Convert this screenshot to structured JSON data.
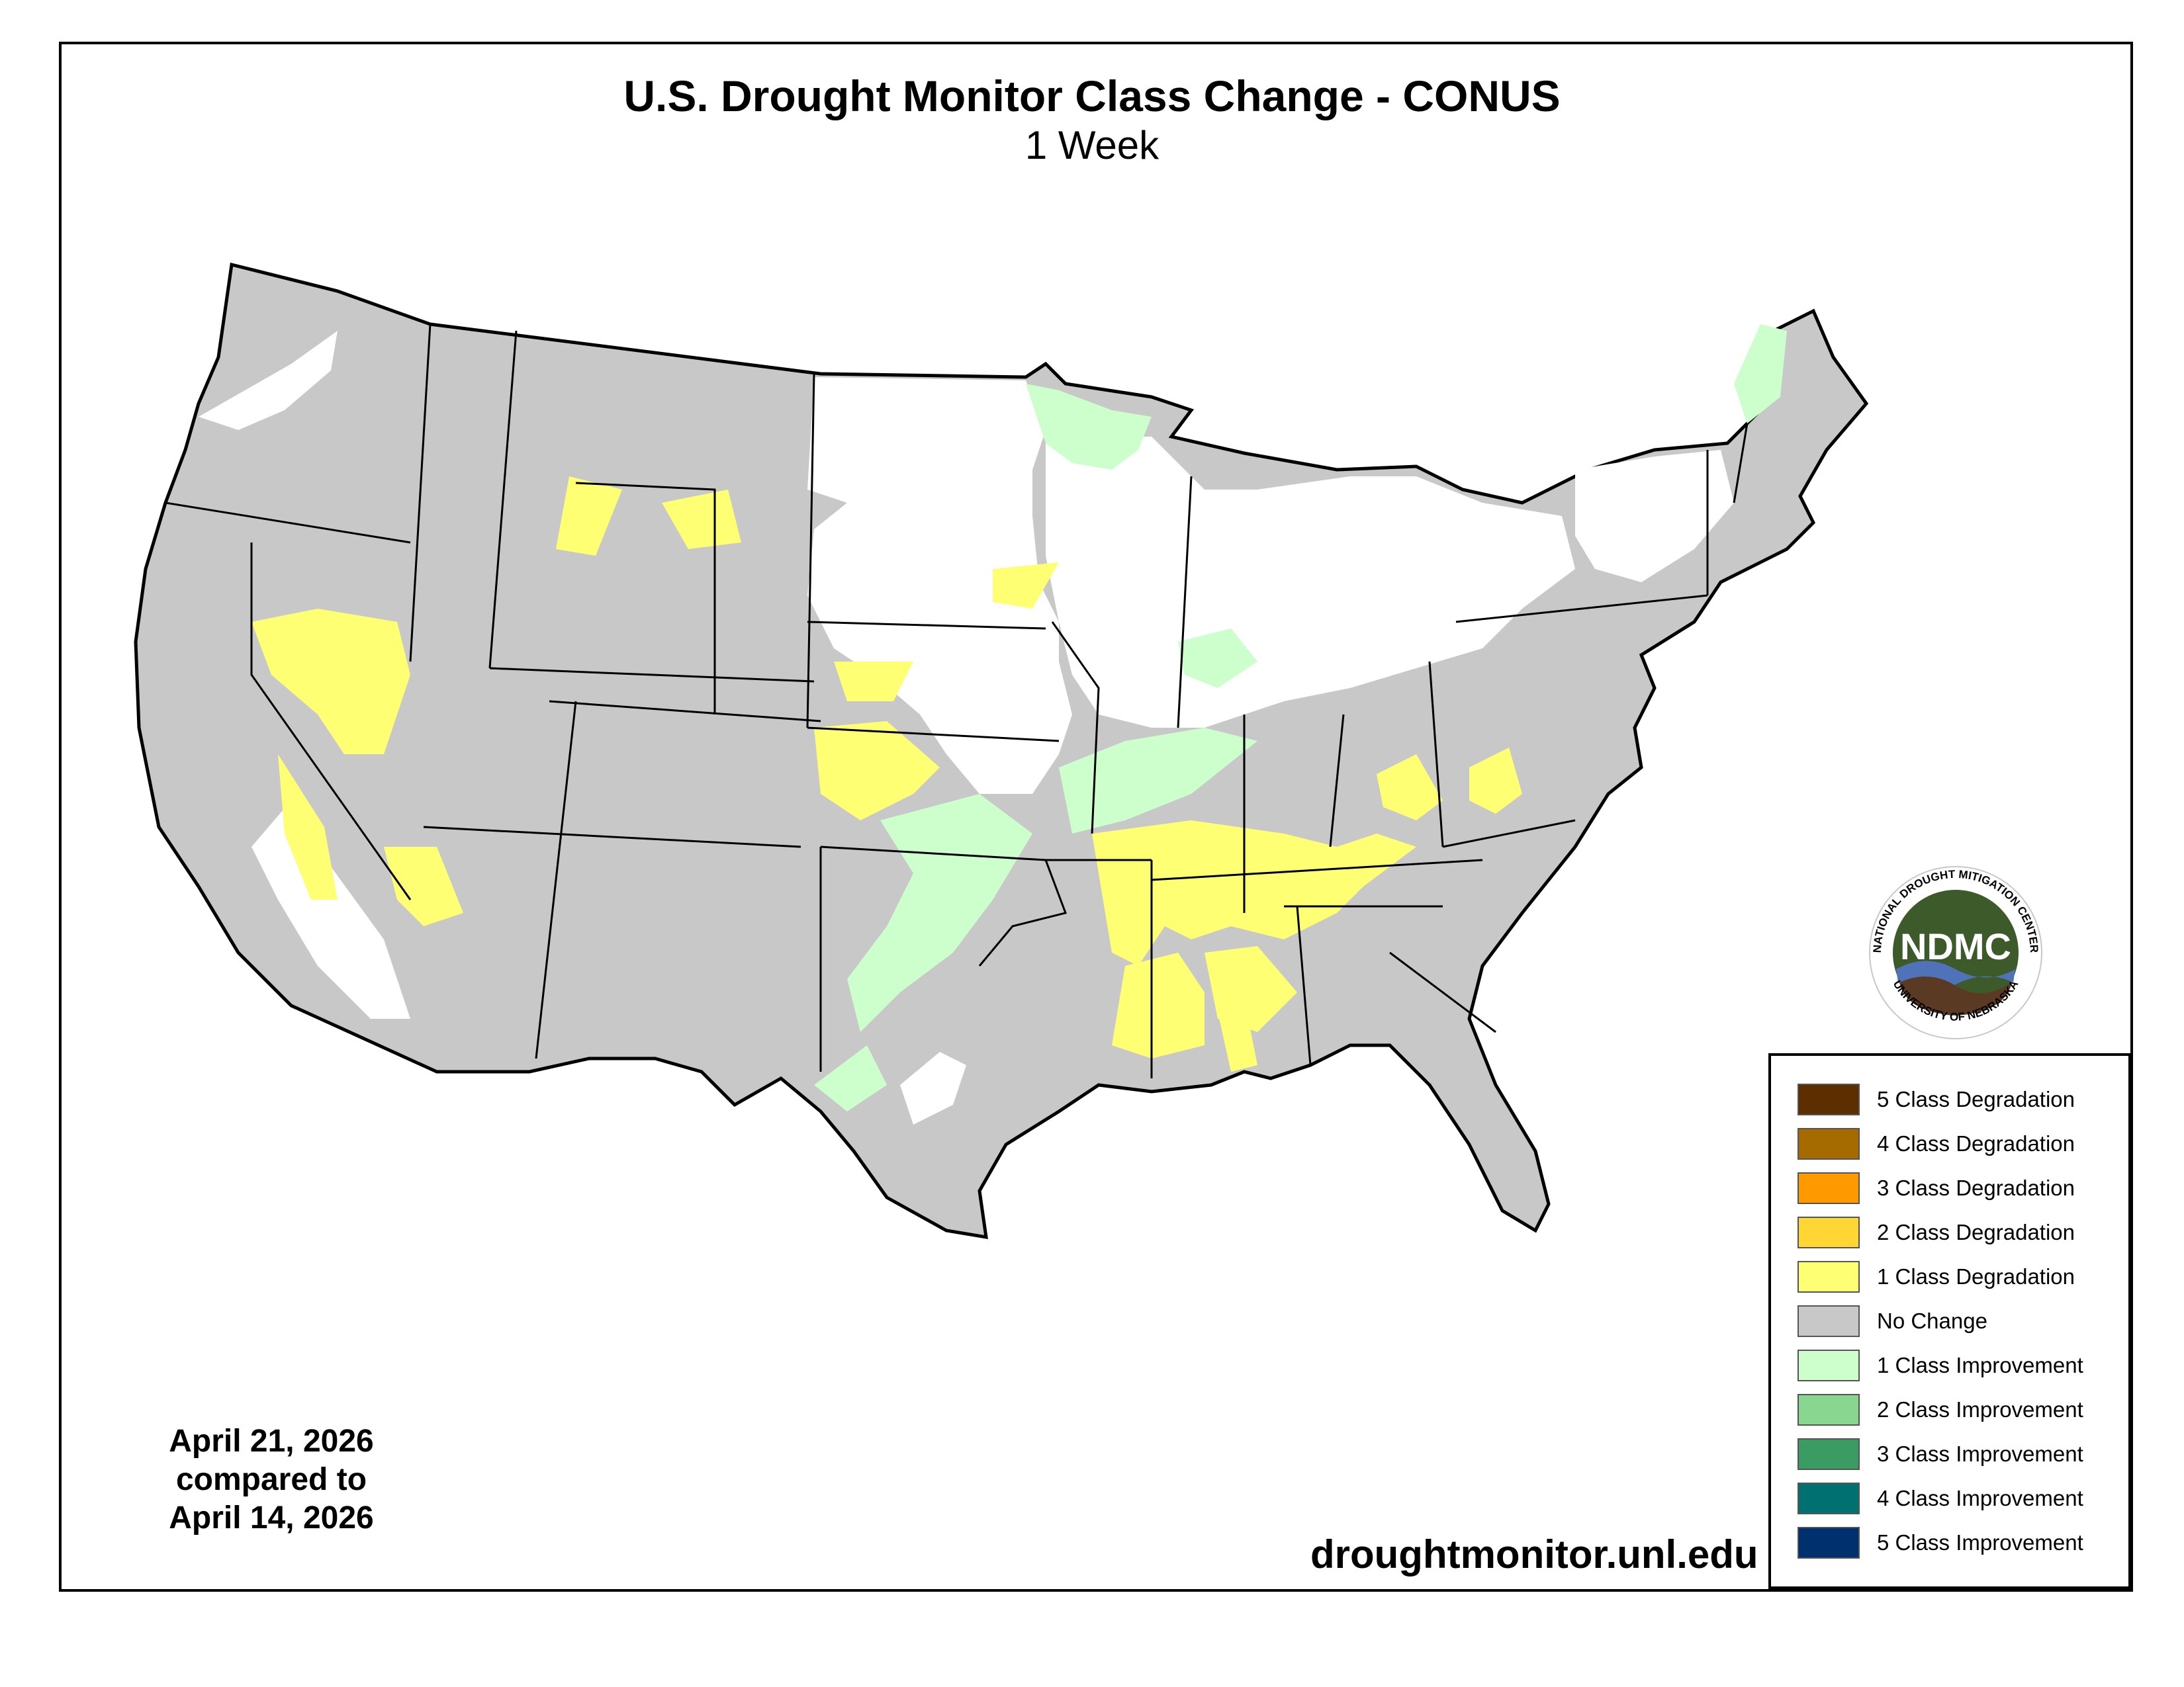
{
  "header": {
    "title": "U.S. Drought Monitor Class Change - CONUS",
    "subtitle": "1 Week"
  },
  "footer": {
    "date_line1": "April 21, 2026",
    "date_line2": "compared to",
    "date_line3": "April 14, 2026",
    "url": "droughtmonitor.unl.edu"
  },
  "logo": {
    "text": "NDMC",
    "ring_top": "NATIONAL DROUGHT MITIGATION CENTER",
    "ring_bottom": "UNIVERSITY OF NEBRASKA"
  },
  "colors": {
    "no_change": "#c8c8c8",
    "degradation_1": "#ffff73",
    "improvement_1": "#ccffcc",
    "no_data": "#ffffff"
  },
  "legend": {
    "items": [
      {
        "label": "5 Class Degradation",
        "color": "#5c2e00"
      },
      {
        "label": "4 Class Degradation",
        "color": "#a56a00"
      },
      {
        "label": "3 Class Degradation",
        "color": "#ff9900"
      },
      {
        "label": "2 Class Degradation",
        "color": "#ffd633"
      },
      {
        "label": "1 Class Degradation",
        "color": "#ffff73"
      },
      {
        "label": "No Change",
        "color": "#c8c8c8"
      },
      {
        "label": "1 Class Improvement",
        "color": "#ccffcc"
      },
      {
        "label": "2 Class Improvement",
        "color": "#88d690"
      },
      {
        "label": "3 Class Improvement",
        "color": "#3a9c63"
      },
      {
        "label": "4 Class Improvement",
        "color": "#007070"
      },
      {
        "label": "5 Class Improvement",
        "color": "#00306e"
      }
    ]
  }
}
